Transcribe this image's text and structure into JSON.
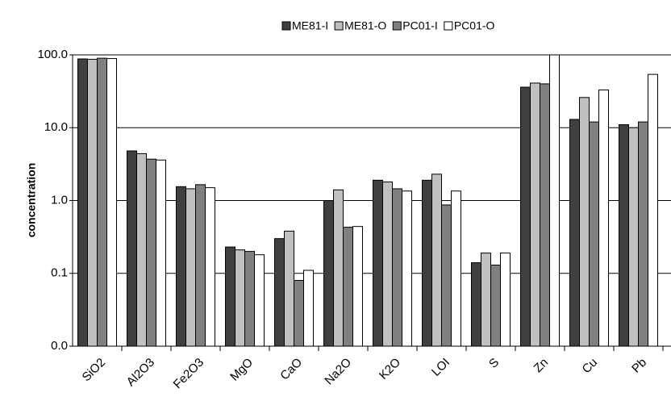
{
  "chart_data": {
    "type": "bar",
    "y_label": "concentration",
    "log_scale": true,
    "grid": true,
    "categories": [
      "SiO2",
      "Al2O3",
      "Fe2O3",
      "MgO",
      "CaO",
      "Na2O",
      "K2O",
      "LOI",
      "S",
      "Zn",
      "Cu",
      "Pb"
    ],
    "series": [
      {
        "name": "ME81-I",
        "color": "#404040",
        "values": [
          88,
          4.8,
          1.55,
          0.23,
          0.3,
          1.0,
          1.9,
          1.9,
          0.14,
          36,
          13,
          11
        ]
      },
      {
        "name": "ME81-O",
        "color": "#c0c0c0",
        "values": [
          87,
          4.4,
          1.45,
          0.21,
          0.38,
          1.4,
          1.8,
          2.3,
          0.19,
          41,
          26,
          10
        ]
      },
      {
        "name": "PC01-I",
        "color": "#808080",
        "values": [
          90,
          3.7,
          1.65,
          0.2,
          0.08,
          0.43,
          1.45,
          0.87,
          0.13,
          40,
          12,
          12
        ]
      },
      {
        "name": "PC01-O",
        "color": "#ffffff",
        "values": [
          89,
          3.6,
          1.5,
          0.18,
          0.11,
          0.44,
          1.35,
          1.35,
          0.19,
          100,
          33,
          54
        ]
      }
    ],
    "ylim": [
      0.01,
      100
    ],
    "yticks": [
      {
        "value": 0.01,
        "label": "0.0"
      },
      {
        "value": 0.1,
        "label": "0.1"
      },
      {
        "value": 1,
        "label": "1.0"
      },
      {
        "value": 10,
        "label": "10.0"
      },
      {
        "value": 100,
        "label": "100.0"
      }
    ]
  }
}
